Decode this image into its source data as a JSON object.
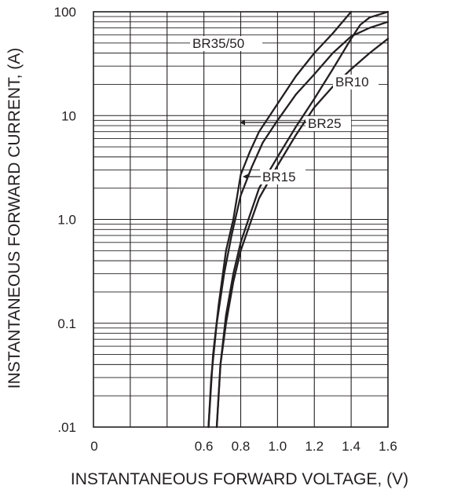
{
  "chart_data": {
    "type": "line",
    "title": "",
    "xlabel": "INSTANTANEOUS FORWARD VOLTAGE, (V)",
    "ylabel": "INSTANTANEOUS FORWARD CURRENT, (A)",
    "xlim": [
      0,
      1.6
    ],
    "ylim": [
      0.01,
      100
    ],
    "yscale": "log",
    "x_ticks": [
      "0",
      "0.6",
      "0.8",
      "1.0",
      "1.2",
      "1.4",
      "1.6"
    ],
    "y_ticks": [
      ".01",
      "0.1",
      "1.0",
      "10",
      "100"
    ],
    "grid": true,
    "colors": {
      "ink": "#231f20",
      "background": "#ffffff"
    },
    "series": [
      {
        "name": "BR35/50",
        "points": [
          [
            0.625,
            0.01
          ],
          [
            0.65,
            0.05
          ],
          [
            0.68,
            0.15
          ],
          [
            0.72,
            0.5
          ],
          [
            0.76,
            1.0
          ],
          [
            0.8,
            2.7
          ],
          [
            0.85,
            4.5
          ],
          [
            0.9,
            7.0
          ],
          [
            1.0,
            13.0
          ],
          [
            1.1,
            24.0
          ],
          [
            1.2,
            40.0
          ],
          [
            1.3,
            62.0
          ],
          [
            1.4,
            100.0
          ]
        ]
      },
      {
        "name": "BR10",
        "points": [
          [
            0.625,
            0.01
          ],
          [
            0.64,
            0.03
          ],
          [
            0.67,
            0.1
          ],
          [
            0.71,
            0.3
          ],
          [
            0.75,
            0.7
          ],
          [
            0.8,
            1.7
          ],
          [
            0.86,
            3.2
          ],
          [
            0.92,
            5.5
          ],
          [
            1.0,
            9.0
          ],
          [
            1.1,
            16.0
          ],
          [
            1.2,
            25.0
          ],
          [
            1.3,
            40.0
          ],
          [
            1.4,
            58.0
          ],
          [
            1.5,
            70.0
          ],
          [
            1.6,
            80.0
          ]
        ]
      },
      {
        "name": "BR25",
        "points": [
          [
            0.67,
            0.01
          ],
          [
            0.69,
            0.04
          ],
          [
            0.72,
            0.12
          ],
          [
            0.76,
            0.3
          ],
          [
            0.8,
            0.6
          ],
          [
            0.85,
            1.1
          ],
          [
            0.9,
            2.0
          ],
          [
            1.0,
            4.0
          ],
          [
            1.1,
            7.8
          ],
          [
            1.2,
            14.5
          ],
          [
            1.3,
            28.0
          ],
          [
            1.4,
            55.0
          ],
          [
            1.45,
            75.0
          ],
          [
            1.5,
            88.0
          ],
          [
            1.6,
            100.0
          ]
        ]
      },
      {
        "name": "BR15",
        "points": [
          [
            0.67,
            0.01
          ],
          [
            0.69,
            0.04
          ],
          [
            0.72,
            0.1
          ],
          [
            0.76,
            0.25
          ],
          [
            0.8,
            0.5
          ],
          [
            0.85,
            0.9
          ],
          [
            0.9,
            1.6
          ],
          [
            1.0,
            3.3
          ],
          [
            1.1,
            6.5
          ],
          [
            1.2,
            12.0
          ],
          [
            1.3,
            19.0
          ],
          [
            1.4,
            28.0
          ],
          [
            1.5,
            40.0
          ],
          [
            1.6,
            55.0
          ]
        ]
      }
    ]
  }
}
